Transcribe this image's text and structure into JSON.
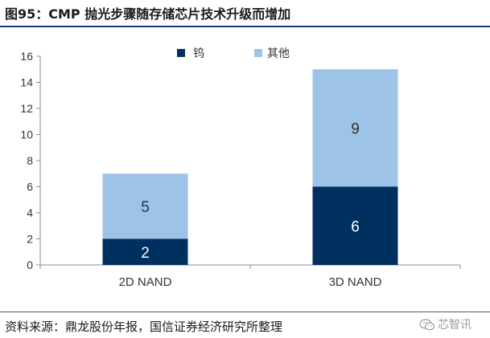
{
  "header": {
    "title": "图95：CMP 抛光步骤随存储芯片技术升级而增加"
  },
  "footer": {
    "source": "资料来源：鼎龙股份年报，国信证券经济研究所整理"
  },
  "watermark": {
    "text": "芯智讯"
  },
  "colors": {
    "tungsten": "#00305f",
    "other": "#9dc3e6",
    "axis": "#8c8c8c",
    "rule": "#1c3c6e"
  },
  "chart_data": {
    "type": "bar",
    "stacked": true,
    "categories": [
      "2D NAND",
      "3D NAND"
    ],
    "series": [
      {
        "name": "钨",
        "values": [
          2,
          6
        ]
      },
      {
        "name": "其他",
        "values": [
          5,
          9
        ]
      }
    ],
    "ylim": [
      0,
      16
    ],
    "yticks": [
      "0",
      "2",
      "4",
      "6",
      "8",
      "10",
      "12",
      "14",
      "16"
    ],
    "legend_position": "top-center",
    "grid": false
  }
}
